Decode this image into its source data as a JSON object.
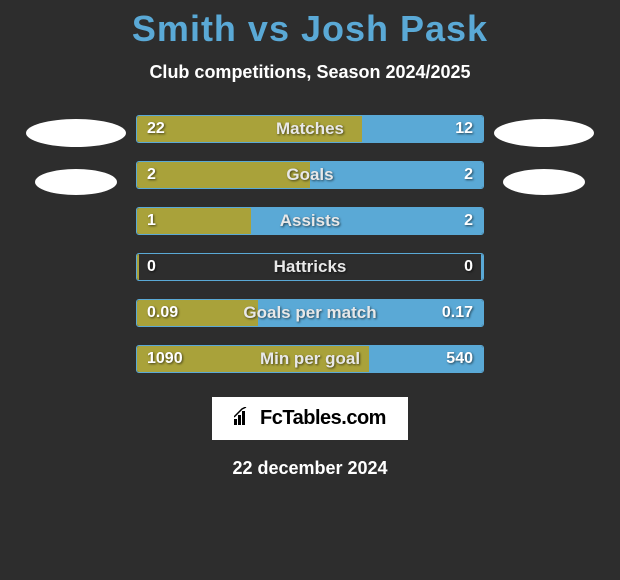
{
  "title": "Smith vs Josh Pask",
  "subtitle": "Club competitions, Season 2024/2025",
  "date": "22 december 2024",
  "logo": {
    "text": "FcTables.com"
  },
  "colors": {
    "left_bar": "#a9a23a",
    "right_bar": "#5aa9d6",
    "background": "#2d2d2d",
    "title_color": "#5aa9d6",
    "text_color": "#ffffff"
  },
  "stats": [
    {
      "label": "Matches",
      "left_val": "22",
      "right_val": "12",
      "left_pct": 65,
      "right_pct": 35
    },
    {
      "label": "Goals",
      "left_val": "2",
      "right_val": "2",
      "left_pct": 50,
      "right_pct": 50
    },
    {
      "label": "Assists",
      "left_val": "1",
      "right_val": "2",
      "left_pct": 33,
      "right_pct": 67
    },
    {
      "label": "Hattricks",
      "left_val": "0",
      "right_val": "0",
      "left_pct": 0.5,
      "right_pct": 0.5
    },
    {
      "label": "Goals per match",
      "left_val": "0.09",
      "right_val": "0.17",
      "left_pct": 35,
      "right_pct": 65
    },
    {
      "label": "Min per goal",
      "left_val": "1090",
      "right_val": "540",
      "left_pct": 67,
      "right_pct": 33
    }
  ]
}
